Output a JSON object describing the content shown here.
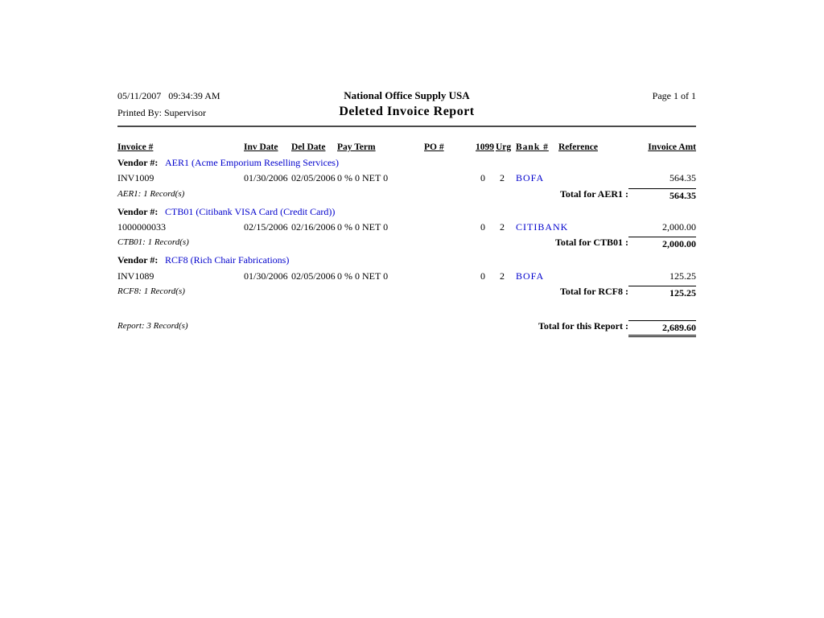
{
  "header": {
    "datetime": "05/11/2007   09:34:39 AM",
    "printed_by": "Printed By: Supervisor",
    "company": "National Office Supply USA",
    "title": "Deleted Invoice Report",
    "page_label": "Page 1 of 1"
  },
  "table": {
    "columns": [
      "Invoice #",
      "Inv Date",
      "Del Date",
      "Pay Term",
      "PO #",
      "1099",
      "Urg",
      "Bank #",
      "Reference",
      "Invoice Amt"
    ],
    "groups": [
      {
        "vendor_label": "Vendor #:",
        "vendor_name": "AER1 (Acme Emporium Reselling Services)",
        "rows": [
          {
            "invoice": "INV1009",
            "inv_date": "01/30/2006",
            "del_date": "02/05/2006",
            "pay_term": "0 % 0 NET 0",
            "n1099": "0",
            "urg": "2",
            "bank": "BOFA",
            "amount": "564.35"
          }
        ],
        "record_note": "AER1: 1 Record(s)",
        "total_label": "Total for AER1 :",
        "total_amount": "564.35"
      },
      {
        "vendor_label": "Vendor #:",
        "vendor_name": "CTB01 (Citibank VISA Card (Credit Card))",
        "rows": [
          {
            "invoice": "1000000033",
            "inv_date": "02/15/2006",
            "del_date": "02/16/2006",
            "pay_term": "0 % 0 NET 0",
            "n1099": "0",
            "urg": "2",
            "bank": "CITIBANK",
            "amount": "2,000.00"
          }
        ],
        "record_note": "CTB01: 1 Record(s)",
        "total_label": "Total for CTB01 :",
        "total_amount": "2,000.00"
      },
      {
        "vendor_label": "Vendor #:",
        "vendor_name": "RCF8 (Rich Chair Fabrications)",
        "rows": [
          {
            "invoice": "INV1089",
            "inv_date": "01/30/2006",
            "del_date": "02/05/2006",
            "pay_term": "0 % 0 NET 0",
            "n1099": "0",
            "urg": "2",
            "bank": "BOFA",
            "amount": "125.25"
          }
        ],
        "record_note": "RCF8: 1 Record(s)",
        "total_label": "Total for RCF8 :",
        "total_amount": "125.25"
      }
    ],
    "footer": {
      "record_note": "Report: 3 Record(s)",
      "total_label": "Total for this Report :",
      "total_amount": "2,689.60"
    }
  },
  "colors": {
    "link_blue": "#0000cc",
    "text": "#000000",
    "background": "#ffffff"
  }
}
